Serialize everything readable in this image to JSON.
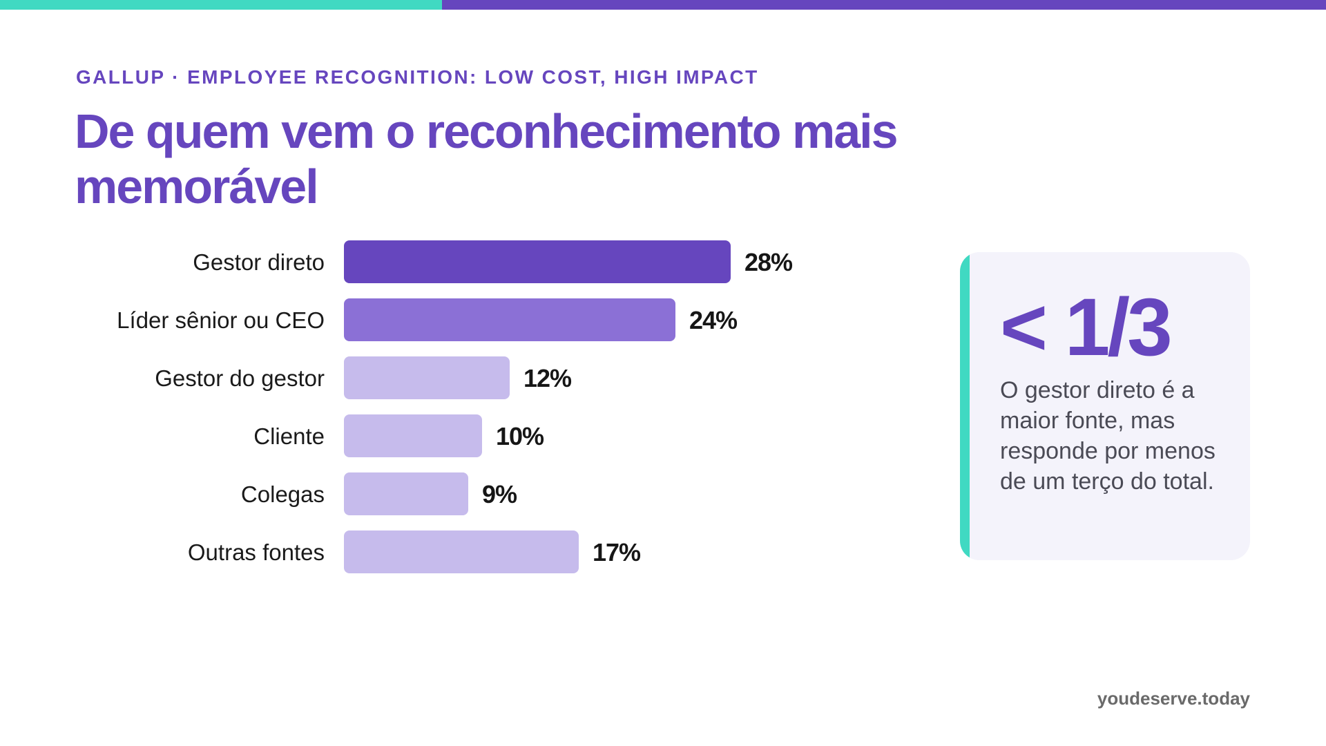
{
  "colors": {
    "accent_teal": "#40d9c2",
    "accent_purple": "#6646be",
    "bar_primary": "#6646be",
    "bar_secondary": "#8b70d6",
    "bar_light": "#c6bbec"
  },
  "header": {
    "eyebrow": "GALLUP · EMPLOYEE RECOGNITION: LOW COST, HIGH IMPACT",
    "title": "De quem vem o reconhecimento mais memorável"
  },
  "chart_data": {
    "type": "bar",
    "orientation": "horizontal",
    "categories": [
      "Gestor direto",
      "Líder sênior ou CEO",
      "Gestor do gestor",
      "Cliente",
      "Colegas",
      "Outras fontes"
    ],
    "values": [
      28,
      24,
      12,
      10,
      9,
      17
    ],
    "value_labels": [
      "28%",
      "24%",
      "12%",
      "10%",
      "9%",
      "17%"
    ],
    "unit": "%",
    "bar_colors": [
      "#6646be",
      "#8b70d6",
      "#c6bbec",
      "#c6bbec",
      "#c6bbec",
      "#c6bbec"
    ],
    "grid": false,
    "legend": "none"
  },
  "callout": {
    "stat": "< 1/3",
    "text": "O gestor direto é a maior fonte, mas responde por menos de um terço do total."
  },
  "footer": {
    "brand": "youdeserve.today"
  }
}
